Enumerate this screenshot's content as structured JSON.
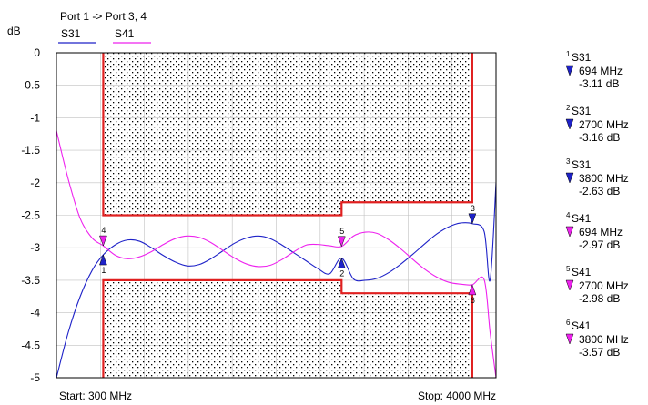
{
  "title": "Port 1 -> Port 3, 4",
  "header_title_partial": "",
  "colors": {
    "s31": "#1e22c8",
    "s41": "#ee22ee",
    "limit": "#e02020",
    "grid": "#c0c0c0",
    "hatch": "#000000"
  },
  "footer": {
    "start": "Start: 300 MHz",
    "stop": "Stop: 4000 MHz"
  },
  "chart_data": {
    "type": "line",
    "ylabel": "dB",
    "xlabel": "",
    "xlim": [
      300,
      4000
    ],
    "ylim": [
      -5,
      0
    ],
    "y_ticks": [
      "0",
      "-0.5",
      "-1",
      "-1.5",
      "-2",
      "-2.5",
      "-3",
      "-3.5",
      "-4",
      "-4.5",
      "-5"
    ],
    "y_tick_values": [
      0,
      -0.5,
      -1,
      -1.5,
      -2,
      -2.5,
      -3,
      -3.5,
      -4,
      -4.5,
      -5
    ],
    "grid": true,
    "legend_position": "top-left",
    "series": [
      {
        "name": "S31",
        "x": [
          300,
          400,
          500,
          600,
          694,
          800,
          900,
          1000,
          1100,
          1200,
          1300,
          1400,
          1500,
          1600,
          1700,
          1800,
          1900,
          2000,
          2100,
          2200,
          2300,
          2400,
          2500,
          2600,
          2700,
          2800,
          2900,
          3000,
          3100,
          3200,
          3300,
          3400,
          3500,
          3600,
          3700,
          3800,
          3900,
          3950,
          4000
        ],
        "y": [
          -5.0,
          -4.3,
          -3.75,
          -3.35,
          -3.11,
          -2.95,
          -2.88,
          -2.9,
          -3.0,
          -3.12,
          -3.22,
          -3.28,
          -3.26,
          -3.17,
          -3.05,
          -2.93,
          -2.85,
          -2.82,
          -2.86,
          -2.96,
          -3.08,
          -3.2,
          -3.32,
          -3.4,
          -3.16,
          -3.48,
          -3.5,
          -3.47,
          -3.38,
          -3.25,
          -3.1,
          -2.94,
          -2.79,
          -2.68,
          -2.62,
          -2.63,
          -2.75,
          -3.5,
          -2.0
        ]
      },
      {
        "name": "S41",
        "x": [
          300,
          400,
          500,
          600,
          694,
          800,
          900,
          1000,
          1100,
          1200,
          1300,
          1400,
          1500,
          1600,
          1700,
          1800,
          1900,
          2000,
          2100,
          2200,
          2300,
          2400,
          2500,
          2600,
          2700,
          2800,
          2900,
          3000,
          3100,
          3200,
          3300,
          3400,
          3500,
          3600,
          3700,
          3800,
          3900,
          3950,
          4000
        ],
        "y": [
          -1.2,
          -1.95,
          -2.55,
          -2.85,
          -2.97,
          -3.12,
          -3.17,
          -3.14,
          -3.06,
          -2.95,
          -2.86,
          -2.82,
          -2.84,
          -2.92,
          -3.04,
          -3.16,
          -3.25,
          -3.29,
          -3.27,
          -3.18,
          -3.06,
          -2.96,
          -2.95,
          -2.97,
          -2.98,
          -2.82,
          -2.76,
          -2.78,
          -2.88,
          -3.02,
          -3.18,
          -3.33,
          -3.45,
          -3.53,
          -3.56,
          -3.57,
          -3.49,
          -4.3,
          -5.0
        ]
      }
    ],
    "limit_lines": {
      "upper": [
        [
          694,
          0
        ],
        [
          694,
          -2.5
        ],
        [
          2700,
          -2.5
        ],
        [
          2700,
          -2.3
        ],
        [
          3800,
          -2.3
        ],
        [
          3800,
          0
        ]
      ],
      "lower": [
        [
          694,
          -5
        ],
        [
          694,
          -3.5
        ],
        [
          2700,
          -3.5
        ],
        [
          2700,
          -3.7
        ],
        [
          3800,
          -3.7
        ],
        [
          3800,
          -5
        ]
      ]
    },
    "markers": [
      {
        "num": "1",
        "trace": "S31",
        "freq": "694 MHz",
        "value": "-3.11 dB",
        "x": 694,
        "y": -3.11,
        "dir": "up"
      },
      {
        "num": "2",
        "trace": "S31",
        "freq": "2700 MHz",
        "value": "-3.16 dB",
        "x": 2700,
        "y": -3.16,
        "dir": "up"
      },
      {
        "num": "3",
        "trace": "S31",
        "freq": "3800 MHz",
        "value": "-2.63 dB",
        "x": 3800,
        "y": -2.63,
        "dir": "down"
      },
      {
        "num": "4",
        "trace": "S41",
        "freq": "694 MHz",
        "value": "-2.97 dB",
        "x": 694,
        "y": -2.97,
        "dir": "down"
      },
      {
        "num": "5",
        "trace": "S41",
        "freq": "2700 MHz",
        "value": "-2.98 dB",
        "x": 2700,
        "y": -2.98,
        "dir": "down"
      },
      {
        "num": "6",
        "trace": "S41",
        "freq": "3800 MHz",
        "value": "-3.57 dB",
        "x": 3800,
        "y": -3.57,
        "dir": "up"
      }
    ]
  }
}
